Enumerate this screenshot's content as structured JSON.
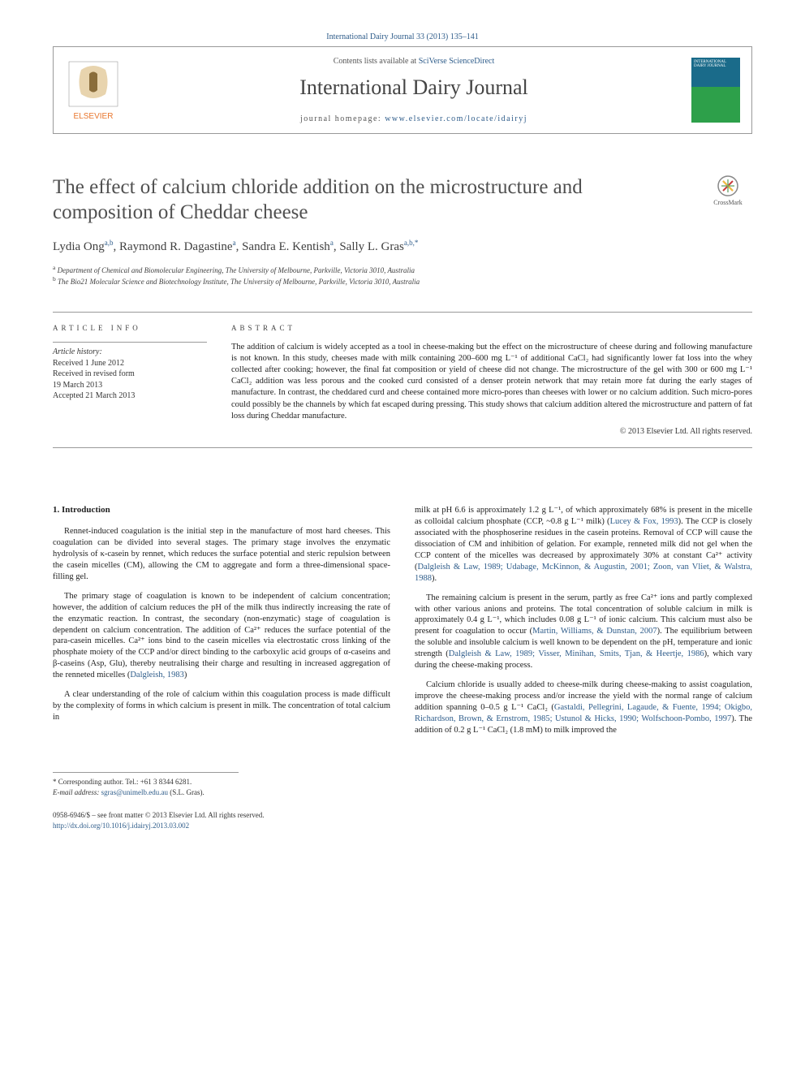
{
  "journal_ref": "International Dairy Journal 33 (2013) 135–141",
  "header": {
    "contents_prefix": "Contents lists available at ",
    "contents_link": "SciVerse ScienceDirect",
    "journal_name": "International Dairy Journal",
    "homepage_prefix": "journal homepage: ",
    "homepage_link": "www.elsevier.com/locate/idairyj",
    "cover_text": "INTERNATIONAL DAIRY JOURNAL"
  },
  "title": "The effect of calcium chloride addition on the microstructure and composition of Cheddar cheese",
  "crossmark_label": "CrossMark",
  "authors_html": "Lydia Ong<sup>a,b</sup>, Raymond R. Dagastine<sup>a</sup>, Sandra E. Kentish<sup>a</sup>, Sally L. Gras<sup>a,b,*</sup>",
  "affiliations": [
    "a Department of Chemical and Biomolecular Engineering, The University of Melbourne, Parkville, Victoria 3010, Australia",
    "b The Bio21 Molecular Science and Biotechnology Institute, The University of Melbourne, Parkville, Victoria 3010, Australia"
  ],
  "article_info_heading": "ARTICLE INFO",
  "abstract_heading": "ABSTRACT",
  "history_label": "Article history:",
  "history": [
    "Received 1 June 2012",
    "Received in revised form",
    "19 March 2013",
    "Accepted 21 March 2013"
  ],
  "abstract": "The addition of calcium is widely accepted as a tool in cheese-making but the effect on the microstructure of cheese during and following manufacture is not known. In this study, cheeses made with milk containing 200–600 mg L⁻¹ of additional CaCl₂ had significantly lower fat loss into the whey collected after cooking; however, the final fat composition or yield of cheese did not change. The microstructure of the gel with 300 or 600 mg L⁻¹ CaCl₂ addition was less porous and the cooked curd consisted of a denser protein network that may retain more fat during the early stages of manufacture. In contrast, the cheddared curd and cheese contained more micro-pores than cheeses with lower or no calcium addition. Such micro-pores could possibly be the channels by which fat escaped during pressing. This study shows that calcium addition altered the microstructure and pattern of fat loss during Cheddar manufacture.",
  "copyright": "© 2013 Elsevier Ltd. All rights reserved.",
  "section_heading": "1. Introduction",
  "left_paras": [
    "Rennet-induced coagulation is the initial step in the manufacture of most hard cheeses. This coagulation can be divided into several stages. The primary stage involves the enzymatic hydrolysis of κ-casein by rennet, which reduces the surface potential and steric repulsion between the casein micelles (CM), allowing the CM to aggregate and form a three-dimensional space-filling gel.",
    "The primary stage of coagulation is known to be independent of calcium concentration; however, the addition of calcium reduces the pH of the milk thus indirectly increasing the rate of the enzymatic reaction. In contrast, the secondary (non-enzymatic) stage of coagulation is dependent on calcium concentration. The addition of Ca²⁺ reduces the surface potential of the para-casein micelles. Ca²⁺ ions bind to the casein micelles via electrostatic cross linking of the phosphate moiety of the CCP and/or direct binding to the carboxylic acid groups of α-caseins and β-caseins (Asp, Glu), thereby neutralising their charge and resulting in increased aggregation of the renneted micelles (Dalgleish, 1983)",
    "A clear understanding of the role of calcium within this coagulation process is made difficult by the complexity of forms in which calcium is present in milk. The concentration of total calcium in"
  ],
  "right_paras": [
    "milk at pH 6.6 is approximately 1.2 g L⁻¹, of which approximately 68% is present in the micelle as colloidal calcium phosphate (CCP, ~0.8 g L⁻¹ milk) (Lucey & Fox, 1993). The CCP is closely associated with the phosphoserine residues in the casein proteins. Removal of CCP will cause the dissociation of CM and inhibition of gelation. For example, renneted milk did not gel when the CCP content of the micelles was decreased by approximately 30% at constant Ca²⁺ activity (Dalgleish & Law, 1989; Udabage, McKinnon, & Augustin, 2001; Zoon, van Vliet, & Walstra, 1988).",
    "The remaining calcium is present in the serum, partly as free Ca²⁺ ions and partly complexed with other various anions and proteins. The total concentration of soluble calcium in milk is approximately 0.4 g L⁻¹, which includes 0.08 g L⁻¹ of ionic calcium. This calcium must also be present for coagulation to occur (Martin, Williams, & Dunstan, 2007). The equilibrium between the soluble and insoluble calcium is well known to be dependent on the pH, temperature and ionic strength (Dalgleish & Law, 1989; Visser, Minihan, Smits, Tjan, & Heertje, 1986), which vary during the cheese-making process.",
    "Calcium chloride is usually added to cheese-milk during cheese-making to assist coagulation, improve the cheese-making process and/or increase the yield with the normal range of calcium addition spanning 0–0.5 g L⁻¹ CaCl₂ (Gastaldi, Pellegrini, Lagaude, & Fuente, 1994; Okigbo, Richardson, Brown, & Ernstrom, 1985; Ustunol & Hicks, 1990; Wolfschoon-Pombo, 1997). The addition of 0.2 g L⁻¹ CaCl₂ (1.8 mM) to milk improved the"
  ],
  "corresponding": {
    "line1_prefix": "* Corresponding author. Tel.: ",
    "tel": "+61 3 8344 6281.",
    "line2_prefix": "E-mail address: ",
    "email": "sgras@unimelb.edu.au",
    "email_suffix": " (S.L. Gras)."
  },
  "footer_left": "0958-6946/$ – see front matter © 2013 Elsevier Ltd. All rights reserved.",
  "doi": "http://dx.doi.org/10.1016/j.idairyj.2013.03.002",
  "colors": {
    "link": "#2e5c8a",
    "text": "#222222",
    "rule": "#999999",
    "cover_top": "#1a6b8a",
    "cover_bottom": "#2da04a",
    "elsevier_orange": "#e8762d"
  }
}
